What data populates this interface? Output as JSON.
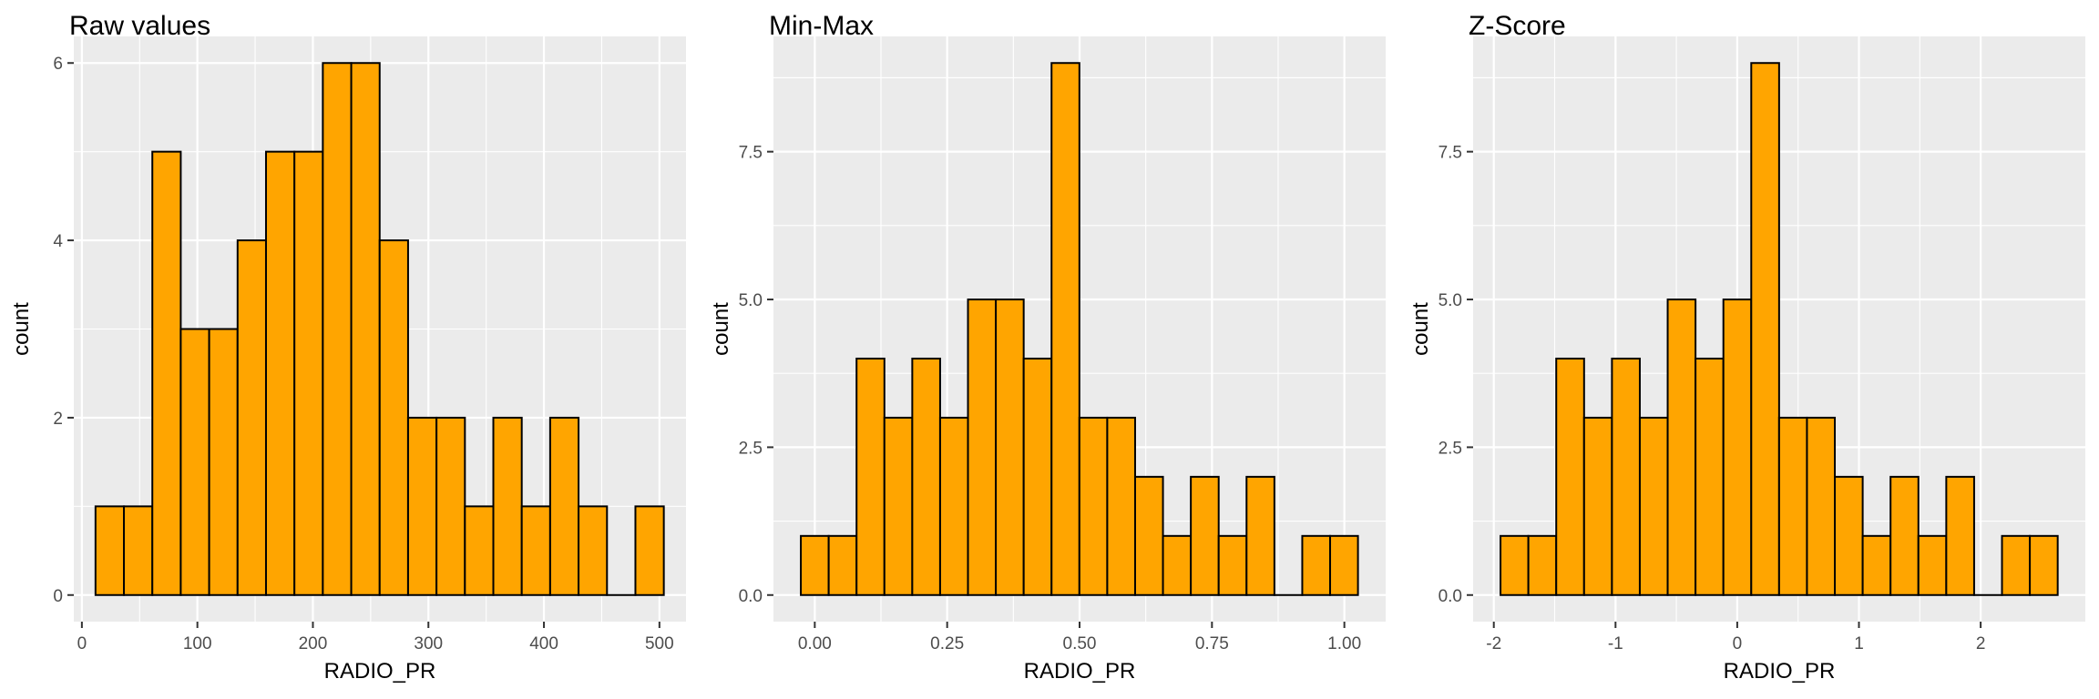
{
  "chart_data": [
    {
      "type": "bar",
      "title": "Raw values",
      "xlabel": "RADIO_PR",
      "ylabel": "count",
      "xlim": [
        -7,
        523
      ],
      "ylim": [
        -0.3,
        6.3
      ],
      "xticks": [
        0,
        100,
        200,
        300,
        400,
        500
      ],
      "xtick_labels": [
        "0",
        "100",
        "200",
        "300",
        "400",
        "500"
      ],
      "yticks": [
        0,
        2,
        4,
        6
      ],
      "ytick_labels": [
        "0",
        "2",
        "4",
        "6"
      ],
      "bin_start": 11.8,
      "bin_width": 24.6,
      "values": [
        1,
        1,
        5,
        3,
        3,
        4,
        5,
        5,
        6,
        6,
        4,
        2,
        2,
        1,
        2,
        1,
        2,
        1,
        0,
        1
      ],
      "bar_fill": "#FFA500",
      "bar_stroke": "#000000",
      "panel_bg": "#EBEBEB",
      "grid": true,
      "legend": "none"
    },
    {
      "type": "bar",
      "title": "Min-Max",
      "xlabel": "RADIO_PR",
      "ylabel": "count",
      "xlim": [
        -0.078,
        1.078
      ],
      "ylim": [
        -0.45,
        9.45
      ],
      "xticks": [
        0.0,
        0.25,
        0.5,
        0.75,
        1.0
      ],
      "xtick_labels": [
        "0.00",
        "0.25",
        "0.50",
        "0.75",
        "1.00"
      ],
      "yticks": [
        0,
        2.5,
        5,
        7.5
      ],
      "ytick_labels": [
        "0.0",
        "2.5",
        "5.0",
        "7.5"
      ],
      "bin_start": -0.0263,
      "bin_width": 0.0526,
      "values": [
        1,
        1,
        4,
        3,
        4,
        3,
        5,
        5,
        4,
        9,
        3,
        3,
        2,
        1,
        2,
        1,
        2,
        0,
        1,
        1
      ],
      "bar_fill": "#FFA500",
      "bar_stroke": "#000000",
      "panel_bg": "#EBEBEB",
      "grid": true,
      "legend": "none"
    },
    {
      "type": "bar",
      "title": "Z-Score",
      "xlabel": "RADIO_PR",
      "ylabel": "count",
      "xlim": [
        -2.17,
        2.86
      ],
      "ylim": [
        -0.45,
        9.45
      ],
      "xticks": [
        -2,
        -1,
        0,
        1,
        2
      ],
      "xtick_labels": [
        "-2",
        "-1",
        "0",
        "1",
        "2"
      ],
      "yticks": [
        0,
        2.5,
        5,
        7.5
      ],
      "ytick_labels": [
        "0.0",
        "2.5",
        "5.0",
        "7.5"
      ],
      "bin_start": -1.945,
      "bin_width": 0.2289,
      "values": [
        1,
        1,
        4,
        3,
        4,
        3,
        5,
        4,
        5,
        9,
        3,
        3,
        2,
        1,
        2,
        1,
        2,
        0,
        1,
        1
      ],
      "bar_fill": "#FFA500",
      "bar_stroke": "#000000",
      "panel_bg": "#EBEBEB",
      "grid": true,
      "legend": "none"
    }
  ]
}
